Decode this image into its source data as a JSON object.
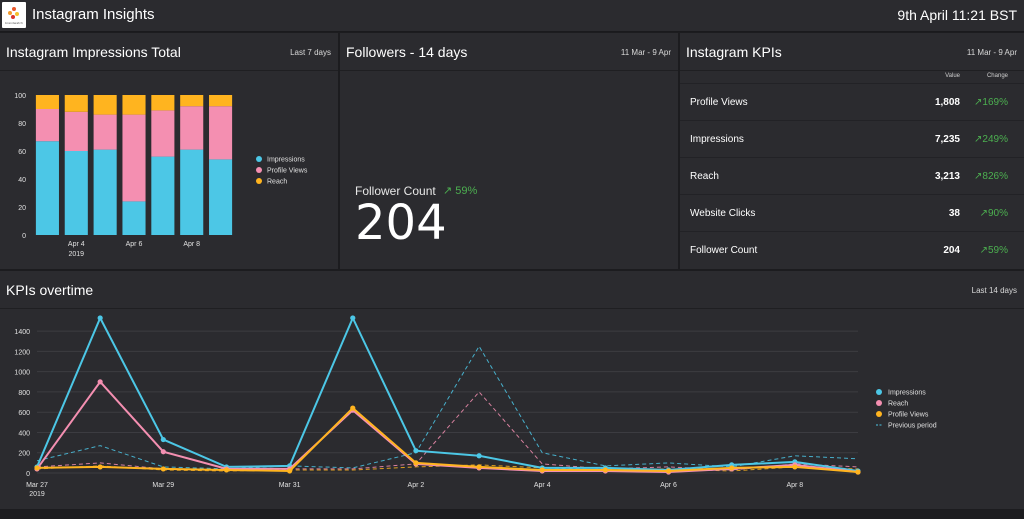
{
  "header": {
    "logo_text": "brandwatch",
    "title": "Instagram Insights",
    "datetime": "9th April 11:21 BST"
  },
  "impressions_panel": {
    "title": "Instagram Impressions Total",
    "range": "Last 7 days"
  },
  "followers_panel": {
    "title": "Followers - 14 days",
    "range": "11 Mar - 9 Apr",
    "label": "Follower Count",
    "change": "59%",
    "value": "204"
  },
  "kpi_panel": {
    "title": "Instagram KPIs",
    "range": "11 Mar - 9 Apr",
    "col_value": "Value",
    "col_change": "Change",
    "rows": [
      {
        "name": "Profile Views",
        "value": "1,808",
        "change": "169%"
      },
      {
        "name": "Impressions",
        "value": "7,235",
        "change": "249%"
      },
      {
        "name": "Reach",
        "value": "3,213",
        "change": "826%"
      },
      {
        "name": "Website Clicks",
        "value": "38",
        "change": "90%"
      },
      {
        "name": "Follower Count",
        "value": "204",
        "change": "59%"
      }
    ]
  },
  "overtime_panel": {
    "title": "KPIs overtime",
    "range": "Last 14 days"
  },
  "colors": {
    "impressions": "#4cc7e6",
    "profile_views": "#f48fb1",
    "reach": "#ffb41f",
    "positive": "#4caf50",
    "panel": "#2b2b2f",
    "background": "#1c1c1f"
  },
  "chart_data": [
    {
      "type": "bar",
      "stacked": true,
      "categories": [
        "Apr 3",
        "Apr 4",
        "Apr 5",
        "Apr 6",
        "Apr 7",
        "Apr 8",
        "Apr 9"
      ],
      "tick_labels": [
        {
          "index": 1,
          "label": "Apr 4",
          "sub": "2019"
        },
        {
          "index": 3,
          "label": "Apr 6",
          "sub": ""
        },
        {
          "index": 5,
          "label": "Apr 8",
          "sub": ""
        }
      ],
      "ylim": [
        0,
        100
      ],
      "yticks": [
        0,
        20,
        40,
        60,
        80,
        100
      ],
      "grid": false,
      "legend": "right",
      "series": [
        {
          "name": "Impressions",
          "color": "#4cc7e6",
          "values": [
            67,
            60,
            61,
            24,
            56,
            61,
            54
          ]
        },
        {
          "name": "Profile Views",
          "color": "#f48fb1",
          "values": [
            23,
            28,
            25,
            62,
            33,
            31,
            38
          ]
        },
        {
          "name": "Reach",
          "color": "#ffb41f",
          "values": [
            10,
            12,
            14,
            14,
            11,
            8,
            8
          ]
        }
      ]
    },
    {
      "type": "line",
      "x": [
        "Mar 27",
        "Mar 28",
        "Mar 29",
        "Mar 30",
        "Mar 31",
        "Apr 1",
        "Apr 2",
        "Apr 3",
        "Apr 4",
        "Apr 5",
        "Apr 6",
        "Apr 7",
        "Apr 8",
        "Apr 9"
      ],
      "tick_labels": [
        {
          "index": 0,
          "label": "Mar 27",
          "sub": "2019"
        },
        {
          "index": 2,
          "label": "Mar 29",
          "sub": ""
        },
        {
          "index": 4,
          "label": "Mar 31",
          "sub": ""
        },
        {
          "index": 6,
          "label": "Apr 2",
          "sub": ""
        },
        {
          "index": 8,
          "label": "Apr 4",
          "sub": ""
        },
        {
          "index": 10,
          "label": "Apr 6",
          "sub": ""
        },
        {
          "index": 12,
          "label": "Apr 8",
          "sub": ""
        }
      ],
      "ylim": [
        0,
        1500
      ],
      "yticks": [
        0,
        200,
        400,
        600,
        800,
        1000,
        1200,
        1400
      ],
      "grid": true,
      "legend": "right",
      "series": [
        {
          "name": "Impressions",
          "color": "#4cc7e6",
          "values": [
            60,
            1530,
            330,
            60,
            70,
            1530,
            220,
            170,
            50,
            50,
            30,
            80,
            110,
            20
          ]
        },
        {
          "name": "Reach",
          "color": "#f48fb1",
          "values": [
            40,
            900,
            210,
            40,
            40,
            620,
            90,
            50,
            20,
            20,
            10,
            40,
            80,
            10
          ]
        },
        {
          "name": "Profile Views",
          "color": "#ffb41f",
          "values": [
            50,
            60,
            40,
            30,
            20,
            640,
            100,
            60,
            30,
            30,
            20,
            50,
            60,
            10
          ]
        }
      ],
      "previous_period": {
        "name": "Previous period",
        "series": [
          {
            "color": "#4cc7e6",
            "values": [
              120,
              270,
              60,
              40,
              70,
              50,
              200,
              1250,
              200,
              70,
              100,
              60,
              170,
              140
            ]
          },
          {
            "color": "#f48fb1",
            "values": [
              60,
              100,
              40,
              30,
              40,
              40,
              90,
              800,
              90,
              40,
              60,
              30,
              90,
              60
            ]
          },
          {
            "color": "#ffb41f",
            "values": [
              40,
              70,
              30,
              20,
              30,
              30,
              60,
              80,
              50,
              30,
              40,
              20,
              60,
              40
            ]
          }
        ]
      }
    }
  ]
}
